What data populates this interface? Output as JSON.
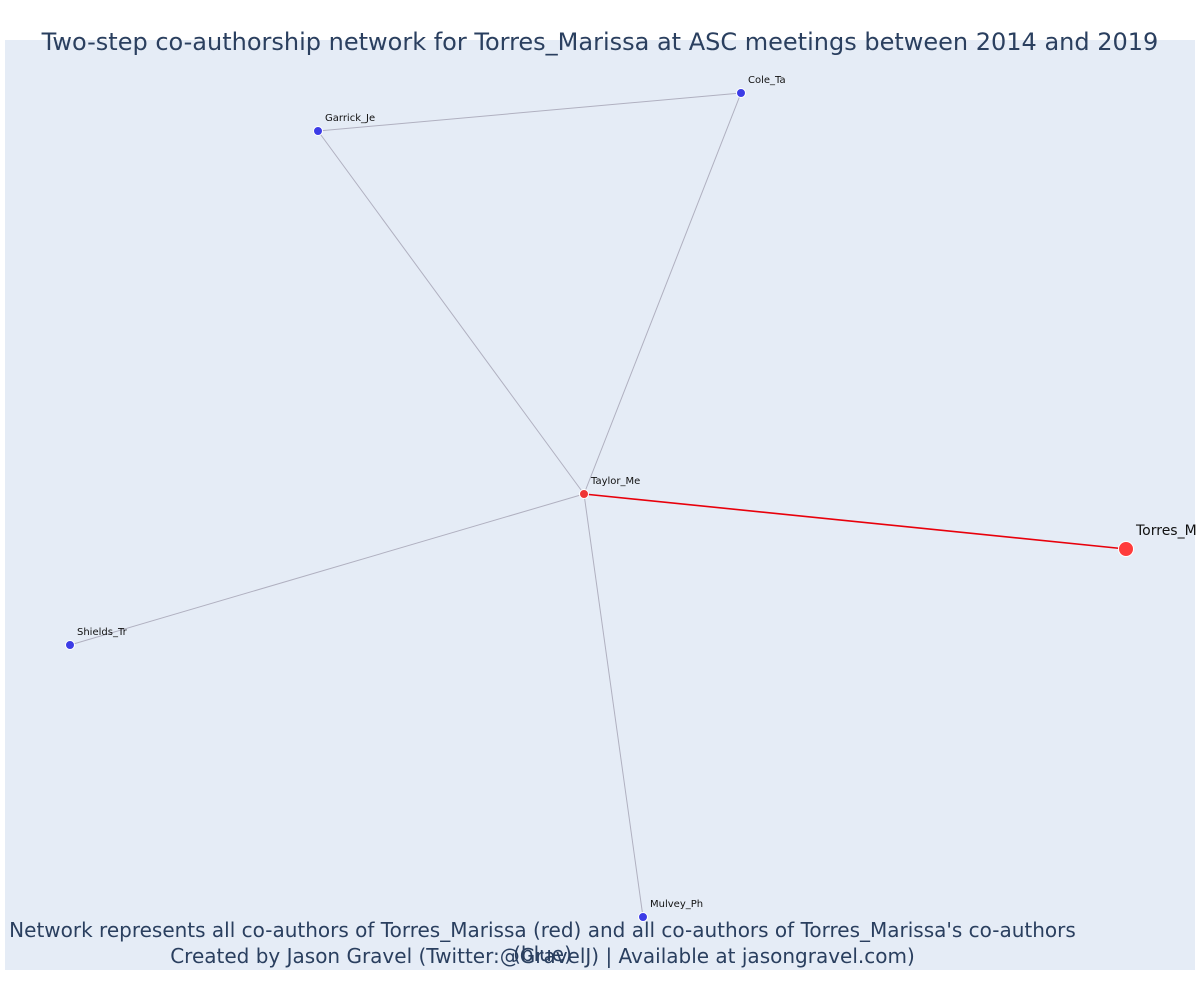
{
  "title": "Two-step co-authorship network for Torres_Marissa at ASC meetings between 2014 and 2019",
  "footer": {
    "line1": "Network represents all co-authors of Torres_Marissa (red) and all co-authors of Torres_Marissa's co-authors (blue)",
    "line2": "Created by Jason Gravel (Twitter:@GravelJ) | Available at jasongravel.com)"
  },
  "colors": {
    "background": "#e5ecf6",
    "focal": "#ff3b3b",
    "first_step": "#ef3535",
    "second_step": "#3c3ce6",
    "edge": "#b0b0c0",
    "focal_edge": "#e8000b"
  },
  "nodes": [
    {
      "id": "Cole_Ta",
      "label": "Cole_Ta",
      "group": "second"
    },
    {
      "id": "Garrick_Je",
      "label": "Garrick_Je",
      "group": "second"
    },
    {
      "id": "Taylor_Me",
      "label": "Taylor_Me",
      "group": "first"
    },
    {
      "id": "Torres_M",
      "label": "Torres_M",
      "group": "focal"
    },
    {
      "id": "Shields_Tr",
      "label": "Shields_Tr",
      "group": "second"
    },
    {
      "id": "Mulvey_Ph",
      "label": "Mulvey_Ph",
      "group": "second"
    }
  ],
  "edges": [
    {
      "source": "Garrick_Je",
      "target": "Cole_Ta",
      "type": "normal"
    },
    {
      "source": "Garrick_Je",
      "target": "Taylor_Me",
      "type": "normal"
    },
    {
      "source": "Cole_Ta",
      "target": "Taylor_Me",
      "type": "normal"
    },
    {
      "source": "Shields_Tr",
      "target": "Taylor_Me",
      "type": "normal"
    },
    {
      "source": "Mulvey_Ph",
      "target": "Taylor_Me",
      "type": "normal"
    },
    {
      "source": "Taylor_Me",
      "target": "Torres_M",
      "type": "focal"
    }
  ]
}
